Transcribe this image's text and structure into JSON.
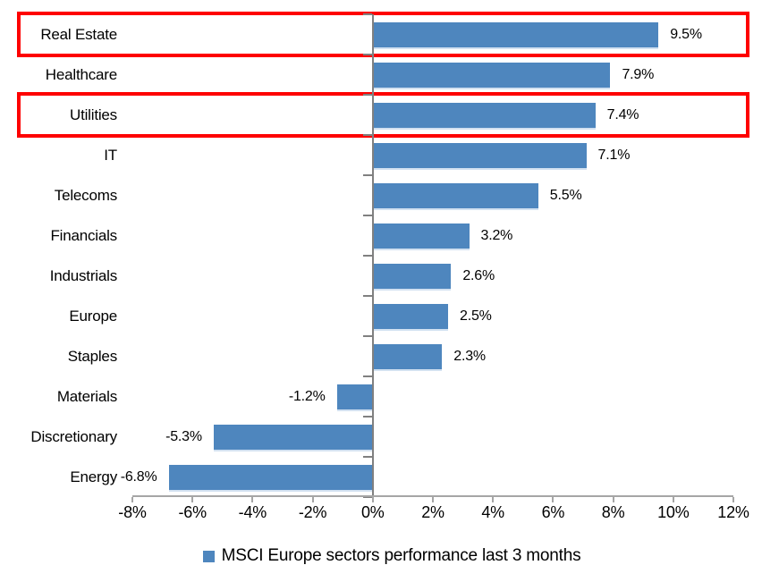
{
  "chart_data": {
    "type": "bar",
    "orientation": "horizontal",
    "title": "",
    "categories": [
      "Real Estate",
      "Healthcare",
      "Utilities",
      "IT",
      "Telecoms",
      "Financials",
      "Industrials",
      "Europe",
      "Staples",
      "Materials",
      "Discretionary",
      "Energy"
    ],
    "values": [
      9.5,
      7.9,
      7.4,
      7.1,
      5.5,
      3.2,
      2.6,
      2.5,
      2.3,
      -1.2,
      -5.3,
      -6.8
    ],
    "value_labels": [
      "9.5%",
      "7.9%",
      "7.4%",
      "7.1%",
      "5.5%",
      "3.2%",
      "2.6%",
      "2.5%",
      "2.3%",
      "-1.2%",
      "-5.3%",
      "-6.8%"
    ],
    "highlighted_categories": [
      "Real Estate",
      "Utilities"
    ],
    "legend": "MSCI Europe sectors performance last 3 months",
    "legend_position": "bottom-center",
    "x_ticks": [
      "-8%",
      "-6%",
      "-4%",
      "-2%",
      "0%",
      "2%",
      "4%",
      "6%",
      "8%",
      "10%",
      "12%"
    ],
    "xlim": [
      -8,
      12
    ],
    "grid": false,
    "colors": {
      "bar": "#4E86BE",
      "highlight_box": "#FE0000",
      "zero_axis": "#808080",
      "x_axis": "#A6A6A6",
      "text": "#000000"
    }
  }
}
